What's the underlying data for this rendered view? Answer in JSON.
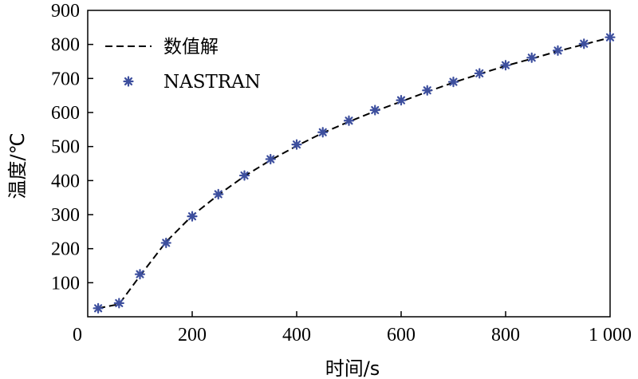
{
  "chart_data": {
    "type": "line",
    "title": "",
    "xlabel": "时间/s",
    "ylabel": "温度/℃",
    "xlim": [
      0,
      1000
    ],
    "ylim": [
      0,
      900
    ],
    "grid": false,
    "legend_position": "top-left",
    "x_ticks": [
      {
        "value": 0,
        "label": "0"
      },
      {
        "value": 200,
        "label": "200"
      },
      {
        "value": 400,
        "label": "400"
      },
      {
        "value": 600,
        "label": "600"
      },
      {
        "value": 800,
        "label": "800"
      },
      {
        "value": 1000,
        "label": "1 000"
      }
    ],
    "y_ticks": [
      {
        "value": 100,
        "label": "100"
      },
      {
        "value": 200,
        "label": "200"
      },
      {
        "value": 300,
        "label": "300"
      },
      {
        "value": 400,
        "label": "400"
      },
      {
        "value": 500,
        "label": "500"
      },
      {
        "value": 600,
        "label": "600"
      },
      {
        "value": 700,
        "label": "700"
      },
      {
        "value": 800,
        "label": "800"
      },
      {
        "value": 900,
        "label": "900"
      }
    ],
    "series": [
      {
        "name": "数值解",
        "style": "dashed-line",
        "color": "#000000",
        "x": [
          20,
          60,
          100,
          150,
          200,
          250,
          300,
          350,
          400,
          450,
          500,
          550,
          600,
          650,
          700,
          750,
          800,
          850,
          900,
          950,
          1000
        ],
        "y": [
          25,
          37,
          120,
          220,
          297,
          358,
          413,
          460,
          502,
          540,
          573,
          604,
          632,
          661,
          688,
          713,
          737,
          758,
          780,
          800,
          820
        ]
      },
      {
        "name": "NASTRAN",
        "style": "markers",
        "color": "#3d4f9e",
        "x": [
          20,
          60,
          100,
          150,
          200,
          250,
          300,
          350,
          400,
          450,
          500,
          550,
          600,
          650,
          700,
          750,
          800,
          850,
          900,
          950,
          1000
        ],
        "y": [
          25,
          40,
          125,
          217,
          295,
          360,
          415,
          463,
          506,
          542,
          576,
          607,
          636,
          665,
          690,
          715,
          739,
          761,
          782,
          802,
          821
        ]
      }
    ]
  }
}
